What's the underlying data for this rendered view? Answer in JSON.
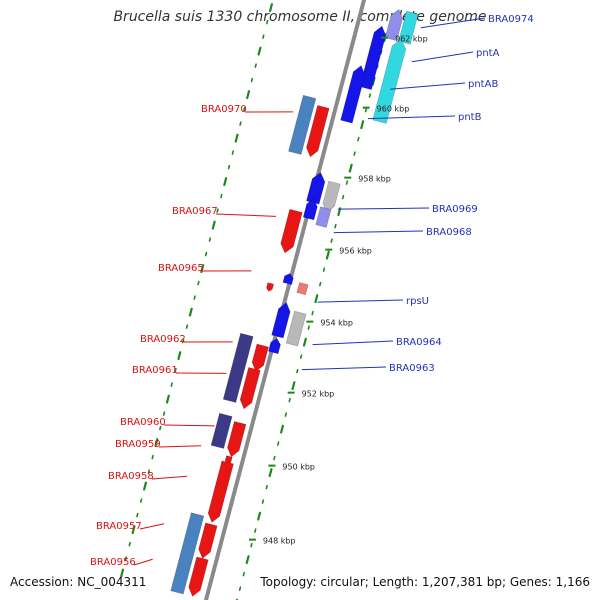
{
  "title": "Brucella suis 1330 chromosome II, complete genome",
  "footer": {
    "accession": "Accession: NC_004311",
    "stats": "Topology: circular; Length: 1,207,381 bp; Genes: 1,166"
  },
  "colors": {
    "forward_gene": "#e81515",
    "reverse_gene": "#1515e8",
    "forward_rna": "#4a82c0",
    "reverse_rna": "#32d8e0",
    "forward_other": "#3c3a86",
    "reverse_other": "#8f8fea",
    "pseudo": "#b8b8b8",
    "backbone": "#8a8a8a",
    "ticks": "#1b8a1b",
    "label_forward": "#dd1111",
    "label_reverse": "#2233bb"
  },
  "scale_marks": [
    "962 kbp",
    "960 kbp",
    "958 kbp",
    "956 kbp",
    "954 kbp",
    "952 kbp",
    "950 kbp",
    "948 kbp"
  ],
  "labels_forward": [
    "BRA0970",
    "BRA0967",
    "BRA0965",
    "BRA0962",
    "BRA0961",
    "BRA0960",
    "BRA0959",
    "BRA0958",
    "BRA0957",
    "BRA0956"
  ],
  "labels_reverse": [
    "BRA0974",
    "pntA",
    "pntAB",
    "pntB",
    "BRA0969",
    "BRA0968",
    "rpsU",
    "BRA0964",
    "BRA0963"
  ]
}
